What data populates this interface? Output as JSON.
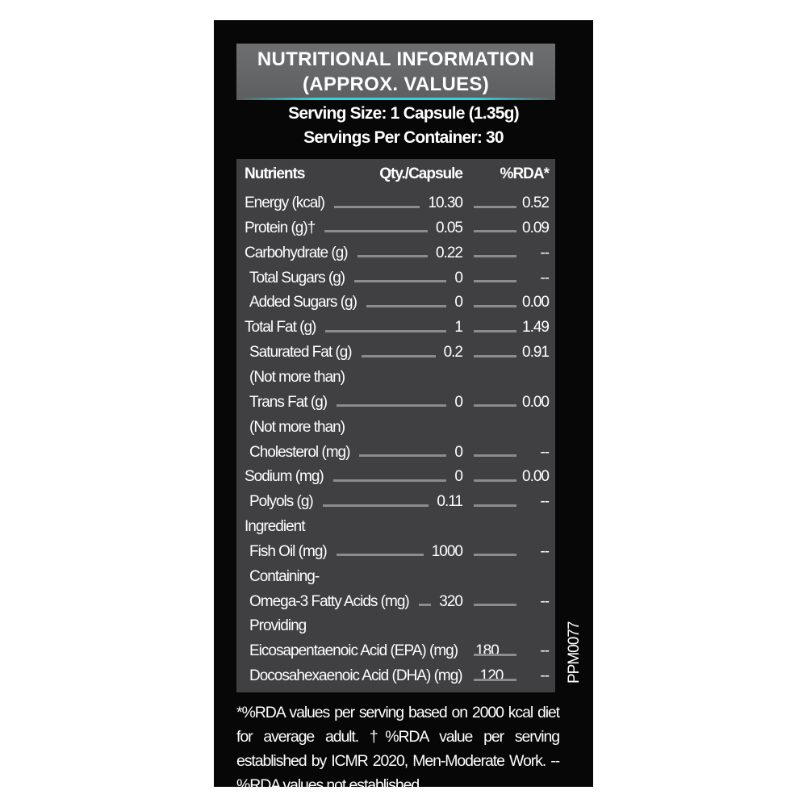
{
  "title": {
    "line1": "NUTRITIONAL INFORMATION",
    "line2": "(APPROX. VALUES)"
  },
  "serving_size": "Serving Size: 1 Capsule (1.35g)",
  "servings_per_container": "Servings Per Container: 30",
  "table": {
    "headers": {
      "nutrient": "Nutrients",
      "qty": "Qty./Capsule",
      "rda": "%RDA*"
    },
    "rows": [
      {
        "label": "Energy (kcal)",
        "qty": "10.30",
        "rda": "0.52"
      },
      {
        "label": "Protein (g)†",
        "qty": "0.05",
        "rda": "0.09"
      },
      {
        "label": "Carbohydrate (g)",
        "qty": "0.22",
        "rda": "--"
      },
      {
        "label": "Total Sugars (g)",
        "qty": "0",
        "rda": "--"
      },
      {
        "label": "Added Sugars (g)",
        "qty": "0",
        "rda": "0.00"
      },
      {
        "label": "Total Fat (g)",
        "qty": "1",
        "rda": "1.49"
      },
      {
        "label": "Saturated Fat (g)",
        "qty": "0.2",
        "rda": "0.91"
      },
      {
        "label": "(Not more than)",
        "qty": "",
        "rda": ""
      },
      {
        "label": "Trans Fat (g)",
        "qty": "0",
        "rda": "0.00"
      },
      {
        "label": "(Not more than)",
        "qty": "",
        "rda": ""
      },
      {
        "label": "Cholesterol (mg)",
        "qty": "0",
        "rda": "--"
      },
      {
        "label": "Sodium (mg)",
        "qty": "0",
        "rda": "0.00"
      },
      {
        "label": "Polyols (g)",
        "qty": "0.11",
        "rda": "--"
      },
      {
        "label": "Ingredient",
        "qty": "",
        "rda": ""
      },
      {
        "label": "Fish Oil (mg)",
        "qty": "1000",
        "rda": "--"
      },
      {
        "label": "Containing-",
        "qty": "",
        "rda": ""
      },
      {
        "label": "Omega-3 Fatty Acids (mg)",
        "qty": "320",
        "rda": "--"
      },
      {
        "label": "Providing",
        "qty": "",
        "rda": ""
      },
      {
        "label": "Eicosapentaenoic Acid (EPA) (mg)",
        "qty": "180",
        "rda": "--"
      },
      {
        "label": "Docosahexaenoic Acid (DHA) (mg)",
        "qty": "120",
        "rda": "--"
      }
    ]
  },
  "footnote": "*%RDA values per serving based on 2000 kcal diet for average adult. †%RDA value per serving established by ICMR 2020, Men-Moderate Work. --%RDA values not established",
  "code": "PPM0077",
  "colors": {
    "background": "#070707",
    "table": "#404042",
    "header_box": "#636466",
    "accent": "#2fd6e0"
  }
}
